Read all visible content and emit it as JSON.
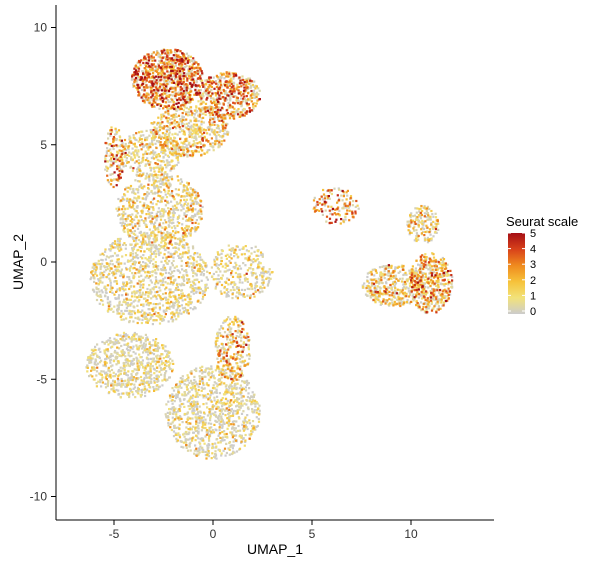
{
  "chart_data": {
    "type": "scatter",
    "title": "",
    "xlabel": "UMAP_1",
    "ylabel": "UMAP_2",
    "xlim": [
      -8,
      14
    ],
    "ylim": [
      -11,
      11
    ],
    "xticks": [
      -5,
      0,
      5,
      10
    ],
    "yticks": [
      -10,
      -5,
      0,
      5,
      10
    ],
    "xtick_labels": [
      "-5",
      "0",
      "5",
      "10"
    ],
    "ytick_labels": [
      "-10",
      "-5",
      "0",
      "5",
      "10"
    ],
    "grid": false,
    "color_scale": {
      "title": "Seurat scale",
      "min": 0,
      "max": 5,
      "ticks": [
        0,
        1,
        2,
        3,
        4,
        5
      ],
      "tick_labels": [
        "0",
        "1",
        "2",
        "3",
        "4",
        "5"
      ],
      "colors": [
        "#cccccc",
        "#f2e27a",
        "#f6c23a",
        "#ef8a1e",
        "#d8411a",
        "#a50f15"
      ]
    },
    "legend_position": "right",
    "regions": [
      {
        "cx": -2.3,
        "cy": 7.8,
        "rx": 1.8,
        "ry": 1.3,
        "n": 900,
        "value": 3.3,
        "spread": 1.3
      },
      {
        "cx": 0.8,
        "cy": 7.1,
        "rx": 1.6,
        "ry": 1.0,
        "n": 500,
        "value": 2.8,
        "spread": 1.3
      },
      {
        "cx": -1.2,
        "cy": 5.6,
        "rx": 2.0,
        "ry": 1.1,
        "n": 550,
        "value": 1.7,
        "spread": 1.2
      },
      {
        "cx": -3.2,
        "cy": 4.6,
        "rx": 1.6,
        "ry": 1.0,
        "n": 320,
        "value": 1.2,
        "spread": 1.1
      },
      {
        "cx": -5.0,
        "cy": 4.5,
        "rx": 0.5,
        "ry": 1.3,
        "n": 140,
        "value": 2.5,
        "spread": 1.4
      },
      {
        "cx": -2.7,
        "cy": 2.2,
        "rx": 2.2,
        "ry": 1.6,
        "n": 700,
        "value": 1.2,
        "spread": 1.1
      },
      {
        "cx": -3.2,
        "cy": -0.7,
        "rx": 3.0,
        "ry": 2.0,
        "n": 1100,
        "value": 0.9,
        "spread": 1.0
      },
      {
        "cx": -4.2,
        "cy": -4.4,
        "rx": 2.2,
        "ry": 1.4,
        "n": 700,
        "value": 0.7,
        "spread": 0.9
      },
      {
        "cx": 1.0,
        "cy": -3.7,
        "rx": 0.9,
        "ry": 1.4,
        "n": 260,
        "value": 2.3,
        "spread": 1.3
      },
      {
        "cx": 0.0,
        "cy": -6.4,
        "rx": 2.4,
        "ry": 2.0,
        "n": 950,
        "value": 0.8,
        "spread": 1.0
      },
      {
        "cx": 1.4,
        "cy": -0.4,
        "rx": 1.6,
        "ry": 1.2,
        "n": 300,
        "value": 1.0,
        "spread": 1.0
      },
      {
        "cx": 6.2,
        "cy": 2.4,
        "rx": 1.2,
        "ry": 0.8,
        "n": 140,
        "value": 2.8,
        "spread": 1.3
      },
      {
        "cx": 9.1,
        "cy": -1.0,
        "rx": 1.6,
        "ry": 0.9,
        "n": 400,
        "value": 1.5,
        "spread": 1.3
      },
      {
        "cx": 11.0,
        "cy": -0.9,
        "rx": 1.1,
        "ry": 1.3,
        "n": 450,
        "value": 2.2,
        "spread": 1.3
      },
      {
        "cx": 10.6,
        "cy": 1.6,
        "rx": 0.8,
        "ry": 0.8,
        "n": 160,
        "value": 1.5,
        "spread": 1.2
      }
    ]
  }
}
